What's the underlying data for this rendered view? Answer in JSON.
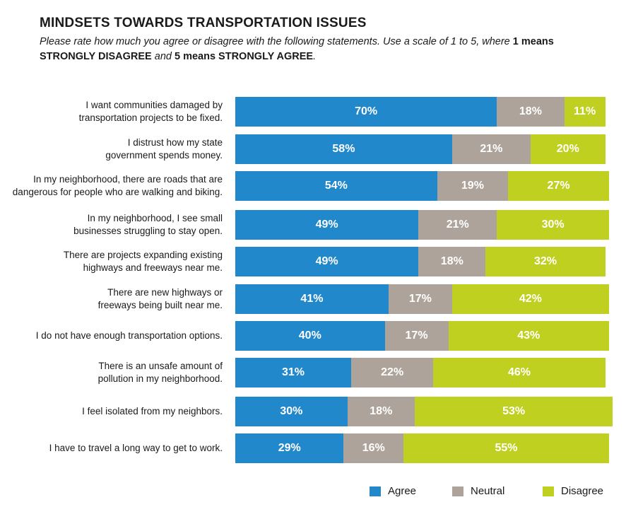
{
  "title": "MINDSETS TOWARDS TRANSPORTATION ISSUES",
  "subtitle": {
    "part1": "Please rate how much you agree or disagree with the following statements. Use a scale of 1 to 5, where ",
    "bold1": "1 means STRONGLY DISAGREE",
    "part2": " and ",
    "bold2": "5 means STRONGLY AGREE",
    "part3": "."
  },
  "colors": {
    "Agree": "#2288CC",
    "Neutral": "#ADA39A",
    "Disagree": "#C0D020"
  },
  "chart_data": {
    "type": "bar",
    "orientation": "horizontal-stacked",
    "categories": [
      "I want communities damaged by transportation projects to be fixed.",
      "I distrust how my state government spends money.",
      "In my neighborhood, there are roads that are dangerous for people who are walking and biking.",
      "In my neighborhood, I see small businesses struggling to stay open.",
      "There are projects expanding existing highways and freeways near me.",
      "There are new highways or freeways being built near me.",
      "I do not have enough transportation options.",
      "There is an unsafe amount of pollution in my neighborhood.",
      "I feel isolated from my neighbors.",
      "I have to travel a long way to get to work."
    ],
    "category_lines": [
      [
        "I want communities damaged by",
        "transportation projects to be fixed."
      ],
      [
        "I distrust how my state",
        "government spends money."
      ],
      [
        "In my neighborhood, there are roads that are",
        "dangerous for people who are walking and biking."
      ],
      [
        "In my neighborhood, I see small",
        "businesses struggling to stay open."
      ],
      [
        "There are projects expanding existing",
        "highways and freeways near me."
      ],
      [
        "There are new highways or",
        "freeways being built near me."
      ],
      [
        "I do not have enough transportation options."
      ],
      [
        "There is an unsafe amount of",
        "pollution in my neighborhood."
      ],
      [
        "I feel isolated from my neighbors."
      ],
      [
        "I have to travel a long way to get to work."
      ]
    ],
    "series": [
      {
        "name": "Agree",
        "values": [
          70,
          58,
          54,
          49,
          49,
          41,
          40,
          31,
          30,
          29
        ]
      },
      {
        "name": "Neutral",
        "values": [
          18,
          21,
          19,
          21,
          18,
          17,
          17,
          22,
          18,
          16
        ]
      },
      {
        "name": "Disagree",
        "values": [
          11,
          20,
          27,
          30,
          32,
          42,
          43,
          46,
          53,
          55
        ]
      }
    ],
    "unit": "%",
    "legend_position": "bottom-right",
    "grid": false
  }
}
